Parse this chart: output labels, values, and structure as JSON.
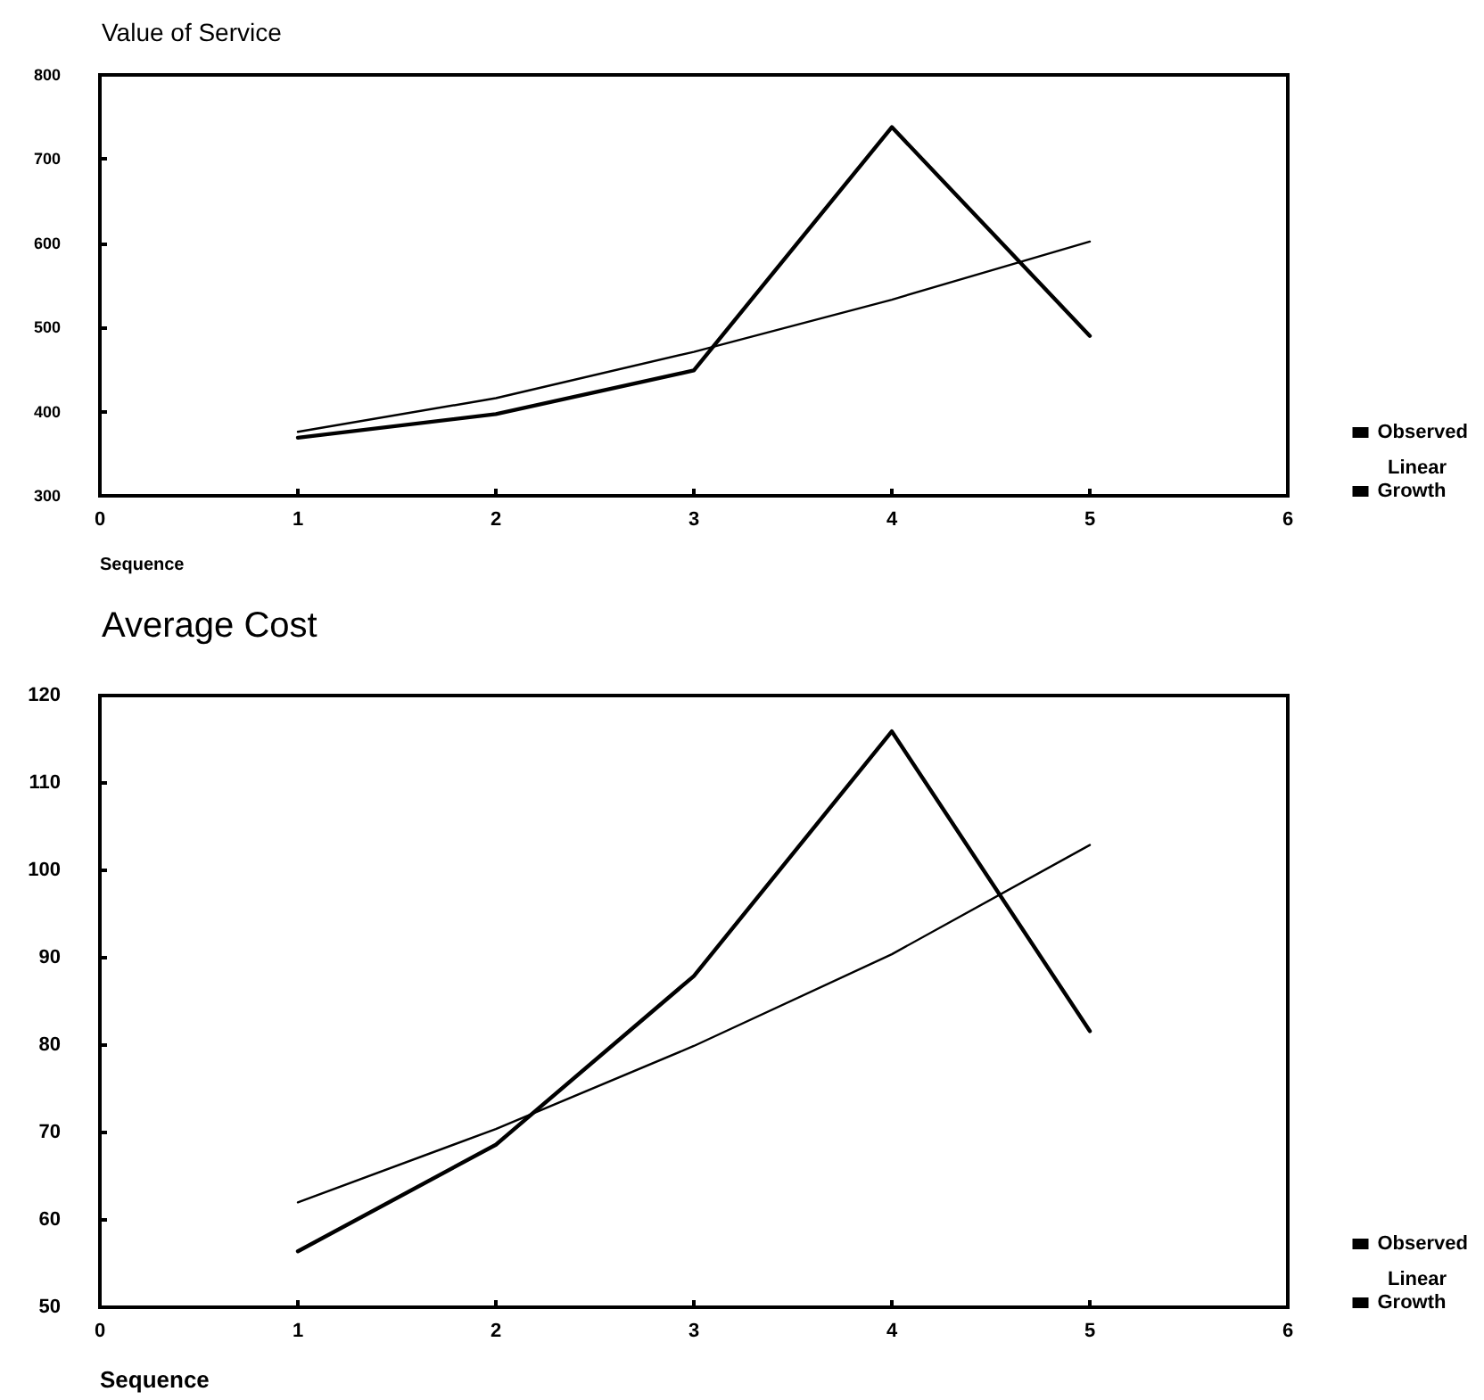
{
  "chart_data": [
    {
      "type": "line",
      "title": "Value of Service",
      "xlabel": "Sequence",
      "x": [
        1,
        2,
        3,
        4,
        5
      ],
      "series": [
        {
          "name": "Observed",
          "color": "#000000",
          "values": [
            369,
            397,
            449,
            738,
            490
          ]
        },
        {
          "name": "Growth",
          "color": "#000000",
          "values": [
            376,
            416,
            471,
            533,
            602
          ]
        }
      ],
      "xlim": [
        0,
        6
      ],
      "xticks": [
        0,
        1,
        2,
        3,
        4,
        5,
        6
      ],
      "ylim": [
        300,
        800
      ],
      "yticks": [
        300,
        400,
        500,
        600,
        700,
        800
      ],
      "legend": "bottom right",
      "marker": "none",
      "line_style": "solid",
      "grid": false,
      "annotations": [
        "Linear"
      ]
    },
    {
      "type": "line",
      "title": "Average Cost",
      "xlabel": "Sequence",
      "x": [
        1,
        2,
        3,
        4,
        5
      ],
      "series": [
        {
          "name": "Observed",
          "color": "#000000",
          "values": [
            56.4,
            68.6,
            87.9,
            115.9,
            81.6
          ]
        },
        {
          "name": "Growth",
          "color": "#000000",
          "values": [
            62,
            70.4,
            79.9,
            90.4,
            102.9
          ]
        }
      ],
      "xlim": [
        0,
        6
      ],
      "xticks": [
        0,
        1,
        2,
        3,
        4,
        5,
        6
      ],
      "ylim": [
        50,
        120
      ],
      "yticks": [
        50,
        60,
        70,
        80,
        90,
        100,
        110,
        120
      ],
      "legend": "bottom right",
      "marker": "none",
      "line_style": "solid",
      "grid": false,
      "annotations": [
        "Linear"
      ]
    }
  ]
}
